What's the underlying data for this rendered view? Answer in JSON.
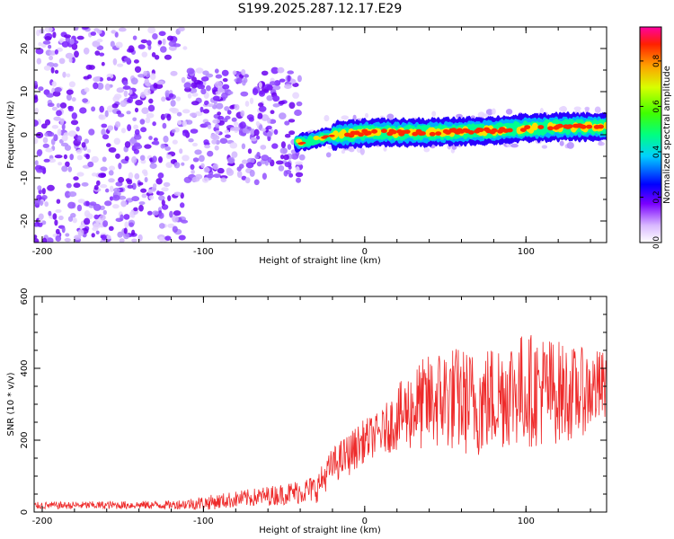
{
  "title": "S199.2025.287.12.17.E29",
  "chart_data": [
    {
      "type": "heatmap",
      "name": "spectrogram",
      "xlabel": "Height of straight line (km)",
      "ylabel": "Frequency (Hz)",
      "xlim": [
        -205,
        150
      ],
      "ylim": [
        -25,
        25
      ],
      "xticks": [
        -200,
        -100,
        0,
        100
      ],
      "yticks": [
        -20,
        -10,
        0,
        10,
        20
      ],
      "ridge": {
        "x": [
          -45,
          -35,
          -25,
          -15,
          -5,
          0,
          20,
          40,
          60,
          80,
          100,
          120,
          140,
          150
        ],
        "freq": [
          -2,
          -1.5,
          -0.5,
          0,
          0.3,
          0.5,
          0.5,
          0.5,
          0.8,
          1.0,
          1.5,
          1.8,
          1.8,
          1.8
        ]
      },
      "colorbar": {
        "label": "Normalized spectral amplitude",
        "ticks": [
          0.0,
          0.2,
          0.4,
          0.6,
          0.8
        ],
        "range": [
          0,
          0.95
        ]
      }
    },
    {
      "type": "line",
      "name": "snr",
      "xlabel": "Height of straight line (km)",
      "ylabel": "SNR (10 * v/v)",
      "xlim": [
        -205,
        150
      ],
      "ylim": [
        0,
        600
      ],
      "xticks": [
        -200,
        -100,
        0,
        100
      ],
      "yticks": [
        0,
        200,
        400,
        600
      ],
      "color": "#ee2a2a",
      "envelope": {
        "x": [
          -205,
          -120,
          -100,
          -70,
          -50,
          -30,
          -20,
          -10,
          0,
          10,
          20,
          30,
          50,
          70,
          90,
          110,
          130,
          150
        ],
        "mean": [
          18,
          20,
          25,
          40,
          50,
          65,
          130,
          160,
          200,
          220,
          260,
          290,
          320,
          300,
          340,
          340,
          330,
          350
        ],
        "spread": [
          10,
          12,
          20,
          25,
          30,
          40,
          50,
          60,
          60,
          60,
          90,
          120,
          150,
          150,
          160,
          160,
          130,
          100
        ]
      }
    }
  ]
}
